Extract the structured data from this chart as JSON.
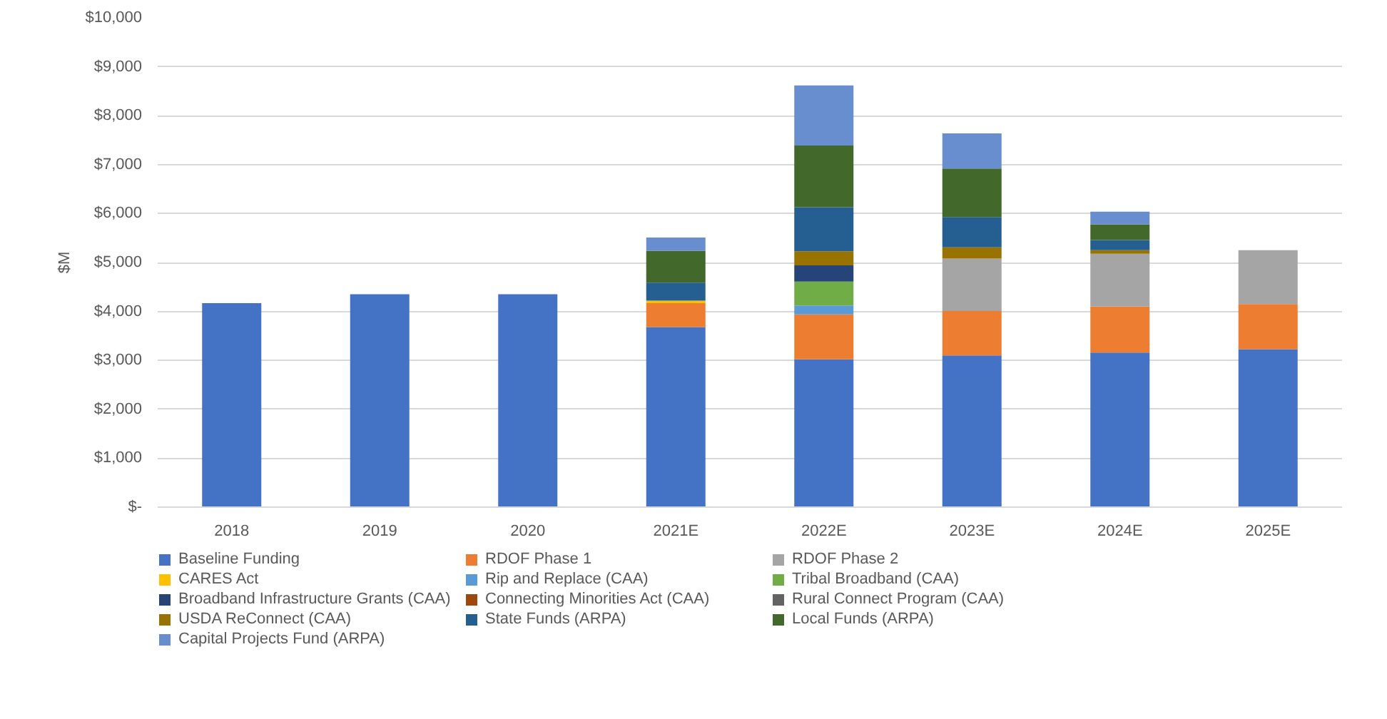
{
  "chart_data": {
    "type": "bar",
    "stacked": true,
    "ylabel": "$M",
    "categories": [
      "2018",
      "2019",
      "2020",
      "2021E",
      "2022E",
      "2023E",
      "2024E",
      "2025E"
    ],
    "ylim": [
      0,
      10000
    ],
    "yticks": [
      {
        "value": 0,
        "label": "$-"
      },
      {
        "value": 1000,
        "label": "$1,000"
      },
      {
        "value": 2000,
        "label": "$2,000"
      },
      {
        "value": 3000,
        "label": "$3,000"
      },
      {
        "value": 4000,
        "label": "$4,000"
      },
      {
        "value": 5000,
        "label": "$5,000"
      },
      {
        "value": 6000,
        "label": "$6,000"
      },
      {
        "value": 7000,
        "label": "$7,000"
      },
      {
        "value": 8000,
        "label": "$8,000"
      },
      {
        "value": 9000,
        "label": "$9,000"
      },
      {
        "value": 10000,
        "label": "$10,000"
      }
    ],
    "grid": "y",
    "legend": "bottom",
    "series": [
      {
        "name": "Baseline Funding",
        "color": "#4472c4",
        "values": [
          4170,
          4350,
          4350,
          3680,
          3020,
          3100,
          3160,
          3230
        ]
      },
      {
        "name": "RDOF Phase 1",
        "color": "#ed7d31",
        "values": [
          null,
          null,
          null,
          490,
          920,
          910,
          940,
          920
        ]
      },
      {
        "name": "RDOF Phase 2",
        "color": "#a5a5a5",
        "values": [
          null,
          null,
          null,
          null,
          null,
          1070,
          1080,
          1100
        ]
      },
      {
        "name": "CARES Act",
        "color": "#ffc000",
        "values": [
          null,
          null,
          null,
          50,
          null,
          null,
          null,
          null
        ]
      },
      {
        "name": "Rip and Replace (CAA)",
        "color": "#5b9bd5",
        "values": [
          null,
          null,
          null,
          null,
          180,
          null,
          null,
          null
        ]
      },
      {
        "name": "Tribal Broadband (CAA)",
        "color": "#70ad47",
        "values": [
          null,
          null,
          null,
          null,
          490,
          null,
          null,
          null
        ]
      },
      {
        "name": "Broadband Infrastructure Grants (CAA)",
        "color": "#264478",
        "values": [
          null,
          null,
          null,
          null,
          330,
          null,
          null,
          null
        ]
      },
      {
        "name": "Connecting Minorities Act (CAA)",
        "color": "#9e480e",
        "values": [
          null,
          null,
          null,
          null,
          null,
          null,
          null,
          null
        ]
      },
      {
        "name": "Rural Connect Program (CAA)",
        "color": "#636363",
        "values": [
          null,
          null,
          null,
          null,
          null,
          null,
          null,
          null
        ]
      },
      {
        "name": "USDA ReConnect (CAA)",
        "color": "#997300",
        "values": [
          null,
          null,
          null,
          null,
          290,
          230,
          70,
          null
        ]
      },
      {
        "name": "State Funds (ARPA)",
        "color": "#255e91",
        "values": [
          null,
          null,
          null,
          370,
          900,
          620,
          210,
          null
        ]
      },
      {
        "name": "Local Funds (ARPA)",
        "color": "#43682b",
        "values": [
          null,
          null,
          null,
          650,
          1260,
          990,
          320,
          null
        ]
      },
      {
        "name": "Capital Projects Fund (ARPA)",
        "color": "#698ed0",
        "values": [
          null,
          null,
          null,
          270,
          1230,
          720,
          260,
          null
        ]
      }
    ]
  }
}
